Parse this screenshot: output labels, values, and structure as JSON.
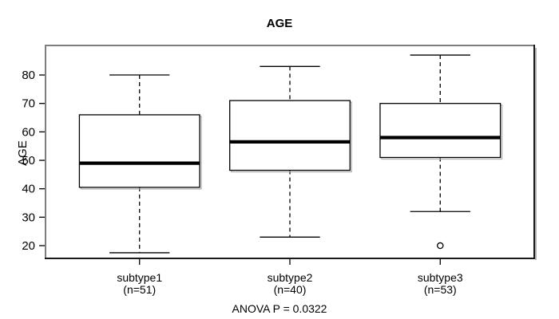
{
  "chart_data": {
    "type": "boxplot",
    "title": "AGE",
    "ylabel": "AGE",
    "annotation": "ANOVA P = 0.0322",
    "ylim": [
      15.8,
      90.1
    ],
    "xlim": [
      0.38,
      3.62
    ],
    "y_ticks": [
      20,
      30,
      40,
      50,
      60,
      70,
      80
    ],
    "box_width": 0.8,
    "cap_width": 0.4,
    "grid": false,
    "legend": null,
    "groups": [
      {
        "label": "subtype1",
        "sublabel": "(n=51)",
        "position": 1,
        "whisker_low": 17.5,
        "q1": 40.5,
        "median": 49,
        "q3": 66,
        "whisker_high": 80,
        "outliers": []
      },
      {
        "label": "subtype2",
        "sublabel": "(n=40)",
        "position": 2,
        "whisker_low": 23,
        "q1": 46.5,
        "median": 56.5,
        "q3": 71,
        "whisker_high": 83,
        "outliers": []
      },
      {
        "label": "subtype3",
        "sublabel": "(n=53)",
        "position": 3,
        "whisker_low": 32,
        "q1": 51,
        "median": 58,
        "q3": 70,
        "whisker_high": 87,
        "outliers": [
          20
        ]
      }
    ]
  },
  "colors": {
    "line": "#000000",
    "frame_top_left": "#7f7f7f",
    "frame_bottom_right": "#1a1a1a",
    "frame_shadow": "#9c9c9c",
    "box_shadow": "#b3b3b3",
    "box_fill": "#ffffff",
    "background": "#ffffff",
    "text": "#000000"
  }
}
